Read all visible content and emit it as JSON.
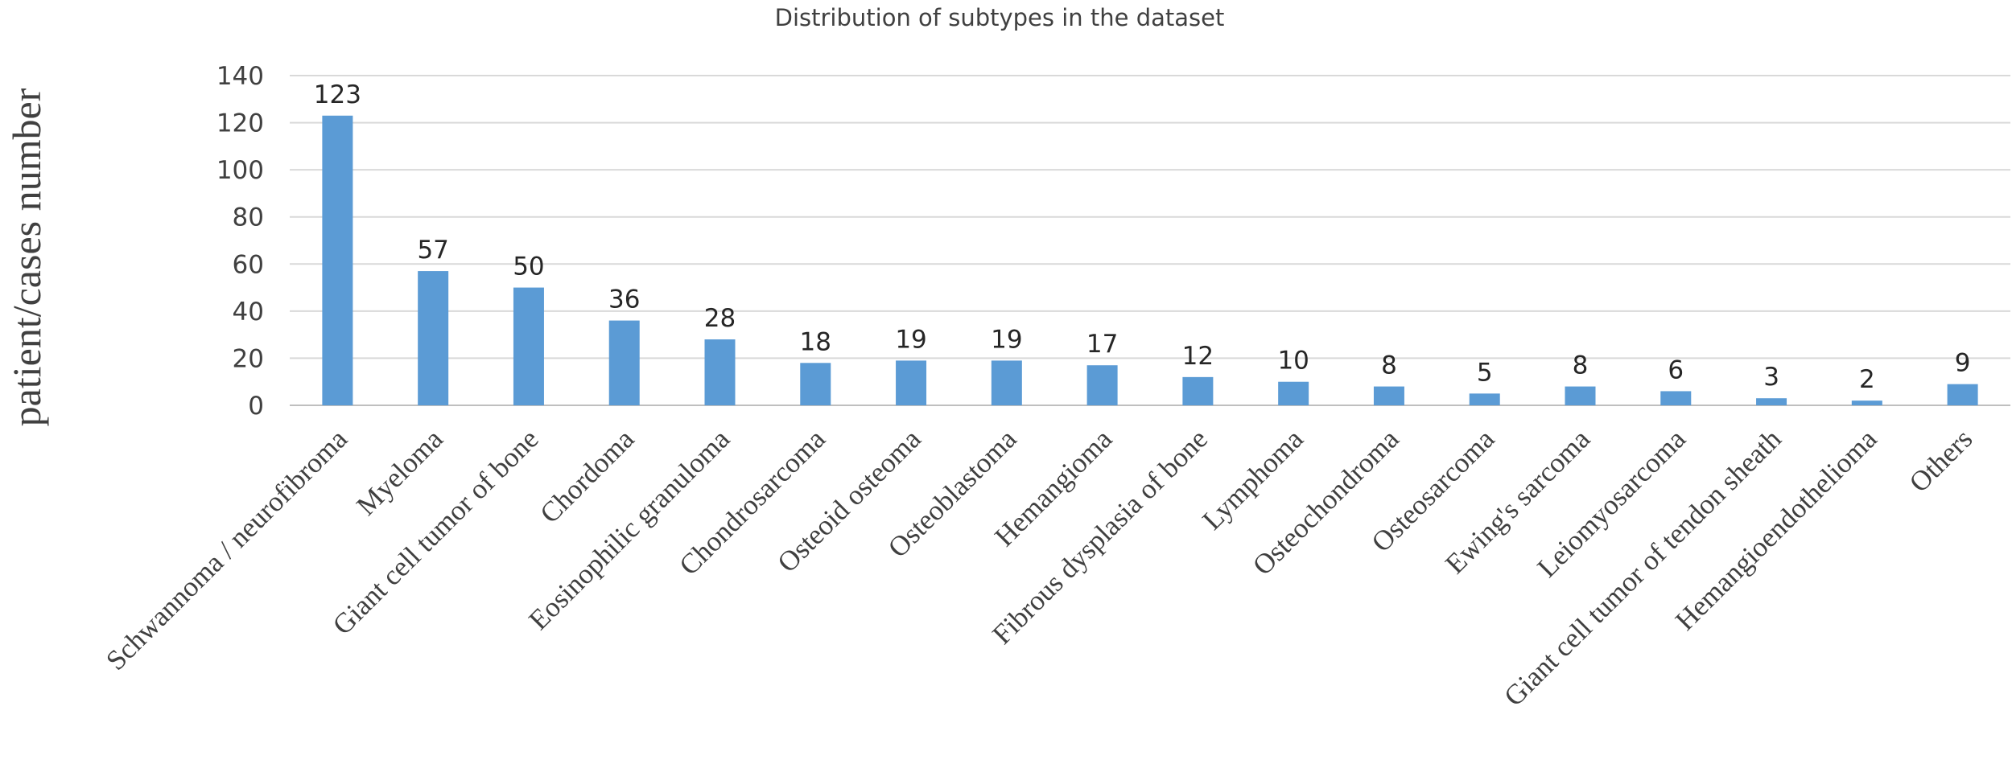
{
  "chart_data": {
    "type": "bar",
    "title": "Distribution of subtypes in the dataset",
    "xlabel": "",
    "ylabel": "patient/cases number",
    "ylim": [
      0,
      140
    ],
    "yticks": [
      0,
      20,
      40,
      60,
      80,
      100,
      120,
      140
    ],
    "grid": true,
    "legend": "none",
    "bar_color": "#5b9bd5",
    "categories": [
      "Schwannoma / neurofibroma",
      "Myeloma",
      "Giant cell tumor of bone",
      "Chordoma",
      "Eosinophilic granuloma",
      "Chondrosarcoma",
      "Osteoid osteoma",
      "Osteoblastoma",
      "Hemangioma",
      "Fibrous dysplasia of bone",
      "Lymphoma",
      "Osteochondroma",
      "Osteosarcoma",
      "Ewing's sarcoma",
      "Leiomyosarcoma",
      "Giant cell tumor of tendon sheath",
      "Hemangioendothelioma",
      "Others"
    ],
    "values": [
      123,
      57,
      50,
      36,
      28,
      18,
      19,
      19,
      17,
      12,
      10,
      8,
      5,
      8,
      6,
      3,
      2,
      9
    ]
  }
}
